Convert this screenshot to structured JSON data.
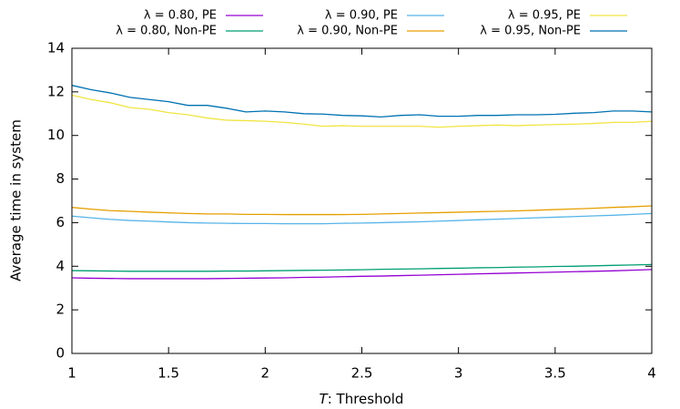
{
  "chart_data": {
    "type": "line",
    "xlabel_var": "T",
    "xlabel": ": Threshold",
    "ylabel": "Average time in system",
    "x": [
      1,
      1.1,
      1.2,
      1.3,
      1.4,
      1.5,
      1.6,
      1.7,
      1.8,
      1.9,
      2,
      2.1,
      2.2,
      2.3,
      2.4,
      2.5,
      2.6,
      2.7,
      2.8,
      2.9,
      3,
      3.1,
      3.2,
      3.3,
      3.4,
      3.5,
      3.6,
      3.7,
      3.8,
      3.9,
      4
    ],
    "series": [
      {
        "name": "λ = 0.80, PE",
        "color": "#9400d3",
        "values": [
          3.47,
          3.45,
          3.44,
          3.43,
          3.43,
          3.43,
          3.43,
          3.43,
          3.44,
          3.45,
          3.46,
          3.47,
          3.49,
          3.5,
          3.52,
          3.54,
          3.55,
          3.57,
          3.59,
          3.61,
          3.63,
          3.65,
          3.67,
          3.69,
          3.71,
          3.73,
          3.75,
          3.77,
          3.79,
          3.82,
          3.85
        ]
      },
      {
        "name": "λ = 0.80, Non-PE",
        "color": "#009e73",
        "values": [
          3.8,
          3.79,
          3.78,
          3.77,
          3.77,
          3.77,
          3.77,
          3.77,
          3.78,
          3.78,
          3.79,
          3.8,
          3.81,
          3.82,
          3.83,
          3.84,
          3.86,
          3.87,
          3.88,
          3.9,
          3.91,
          3.93,
          3.94,
          3.96,
          3.97,
          3.99,
          4.0,
          4.02,
          4.04,
          4.06,
          4.08
        ]
      },
      {
        "name": "λ = 0.90, PE",
        "color": "#56b4e9",
        "values": [
          6.3,
          6.22,
          6.15,
          6.1,
          6.07,
          6.03,
          6.0,
          5.98,
          5.97,
          5.96,
          5.96,
          5.95,
          5.95,
          5.95,
          5.97,
          5.98,
          6.0,
          6.02,
          6.04,
          6.07,
          6.1,
          6.13,
          6.16,
          6.19,
          6.22,
          6.25,
          6.28,
          6.31,
          6.34,
          6.38,
          6.42
        ]
      },
      {
        "name": "λ = 0.90, Non-PE",
        "color": "#e69f00",
        "values": [
          6.7,
          6.62,
          6.55,
          6.52,
          6.48,
          6.45,
          6.42,
          6.4,
          6.4,
          6.38,
          6.38,
          6.37,
          6.37,
          6.37,
          6.37,
          6.38,
          6.4,
          6.42,
          6.44,
          6.46,
          6.48,
          6.5,
          6.52,
          6.54,
          6.57,
          6.6,
          6.63,
          6.66,
          6.7,
          6.73,
          6.77
        ]
      },
      {
        "name": "λ = 0.95, PE",
        "color": "#f0e442",
        "values": [
          11.85,
          11.65,
          11.5,
          11.28,
          11.2,
          11.05,
          10.95,
          10.8,
          10.7,
          10.68,
          10.65,
          10.6,
          10.52,
          10.42,
          10.45,
          10.42,
          10.42,
          10.42,
          10.42,
          10.38,
          10.42,
          10.45,
          10.48,
          10.45,
          10.48,
          10.5,
          10.52,
          10.55,
          10.6,
          10.6,
          10.65
        ]
      },
      {
        "name": "λ = 0.95, Non-PE",
        "color": "#0072b2",
        "values": [
          12.3,
          12.1,
          11.95,
          11.75,
          11.65,
          11.55,
          11.38,
          11.38,
          11.25,
          11.08,
          11.12,
          11.08,
          11.0,
          10.98,
          10.92,
          10.9,
          10.85,
          10.92,
          10.95,
          10.88,
          10.88,
          10.92,
          10.92,
          10.95,
          10.95,
          10.97,
          11.02,
          11.05,
          11.12,
          11.12,
          11.08
        ]
      }
    ],
    "xlim": [
      1,
      4
    ],
    "xticks": [
      1,
      1.5,
      2,
      2.5,
      3,
      3.5,
      4
    ],
    "ylim": [
      0,
      14
    ],
    "yticks": [
      0,
      2,
      4,
      6,
      8,
      10,
      12,
      14
    ],
    "legend": "top",
    "grid": false
  }
}
